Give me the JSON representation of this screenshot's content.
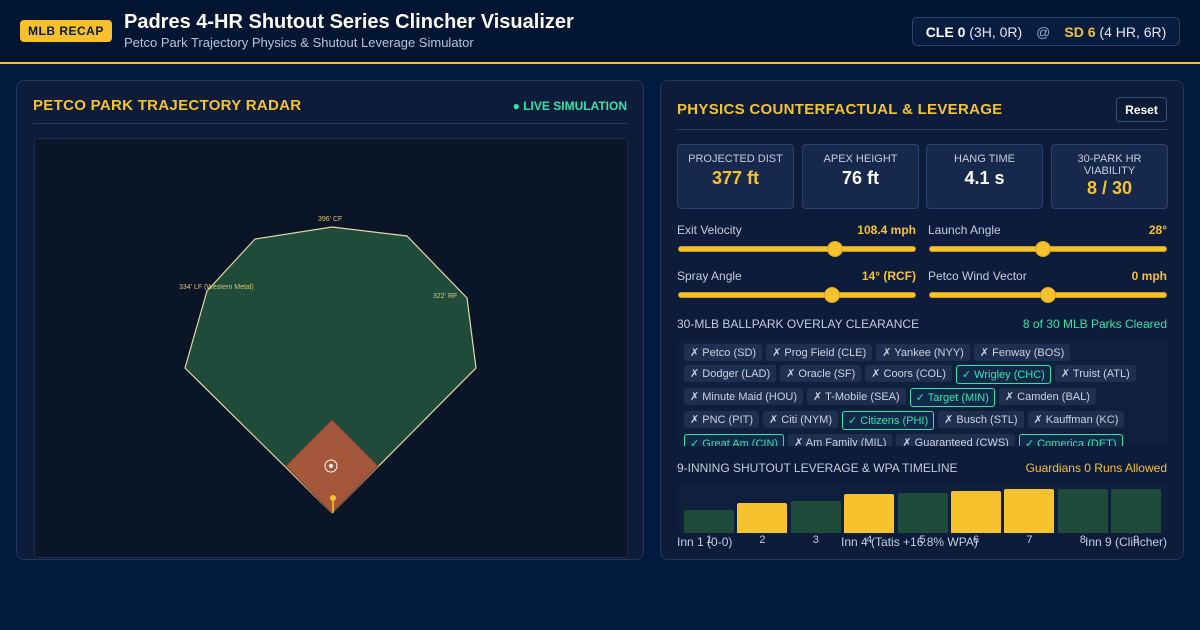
{
  "header": {
    "badge": "MLB RECAP",
    "title": "Padres 4-HR Shutout Series Clincher Visualizer",
    "subtitle": "Petco Park Trajectory Physics & Shutout Leverage Simulator",
    "score": {
      "away_team": "CLE 0",
      "away_detail": "(3H, 0R)",
      "separator": "@",
      "home_team": "SD 6",
      "home_detail": "(4 HR, 6R)"
    }
  },
  "radar": {
    "title": "PETCO PARK TRAJECTORY RADAR",
    "status": "● LIVE SIMULATION",
    "label_cf": "396' CF",
    "label_lf": "334' LF (Western Metal)",
    "label_rf": "322' RF",
    "colors": {
      "field": "#1f4b3a",
      "infield": "#a4573a",
      "warning": "#e9d6a4",
      "ball": "#f7c22e"
    }
  },
  "physics": {
    "title": "PHYSICS COUNTERFACTUAL & LEVERAGE",
    "reset_label": "Reset",
    "stats": [
      {
        "label": "PROJECTED DIST",
        "value": "377 ft"
      },
      {
        "label": "APEX HEIGHT",
        "value": "76 ft"
      },
      {
        "label": "HANG TIME",
        "value": "4.1 s"
      },
      {
        "label": "30-PARK HR VIABILITY",
        "value": "8 / 30"
      }
    ],
    "sliders": [
      {
        "label": "Exit Velocity",
        "value": "108.4 mph",
        "fraction": 0.66
      },
      {
        "label": "Launch Angle",
        "value": "28°",
        "fraction": 0.48
      },
      {
        "label": "Spray Angle",
        "value": "14° (RCF)",
        "fraction": 0.65
      },
      {
        "label": "Petco Wind Vector",
        "value": "0 mph",
        "fraction": 0.5
      }
    ]
  },
  "overlay": {
    "title": "30-MLB BALLPARK OVERLAY CLEARANCE",
    "summary": "8 of 30 MLB Parks Cleared",
    "parks": [
      {
        "label": "✗ Petco (SD)",
        "cleared": false
      },
      {
        "label": "✗ Prog Field (CLE)",
        "cleared": false
      },
      {
        "label": "✗ Yankee (NYY)",
        "cleared": false
      },
      {
        "label": "✗ Fenway (BOS)",
        "cleared": false
      },
      {
        "label": "✗ Dodger (LAD)",
        "cleared": false
      },
      {
        "label": "✗ Oracle (SF)",
        "cleared": false
      },
      {
        "label": "✗ Coors (COL)",
        "cleared": false
      },
      {
        "label": "✓ Wrigley (CHC)",
        "cleared": true
      },
      {
        "label": "✗ Truist (ATL)",
        "cleared": false
      },
      {
        "label": "✗ Minute Maid (HOU)",
        "cleared": false
      },
      {
        "label": "✗ T-Mobile (SEA)",
        "cleared": false
      },
      {
        "label": "✓ Target (MIN)",
        "cleared": true
      },
      {
        "label": "✗ Camden (BAL)",
        "cleared": false
      },
      {
        "label": "✗ PNC (PIT)",
        "cleared": false
      },
      {
        "label": "✗ Citi (NYM)",
        "cleared": false
      },
      {
        "label": "✓ Citizens (PHI)",
        "cleared": true
      },
      {
        "label": "✗ Busch (STL)",
        "cleared": false
      },
      {
        "label": "✗ Kauffman (KC)",
        "cleared": false
      },
      {
        "label": "✓ Great Am (CIN)",
        "cleared": true
      },
      {
        "label": "✗ Am Family (MIL)",
        "cleared": false
      },
      {
        "label": "✗ Guaranteed (CWS)",
        "cleared": false
      },
      {
        "label": "✓ Comerica (DET)",
        "cleared": true
      }
    ]
  },
  "timeline": {
    "title": "9-INNING SHUTOUT LEVERAGE & WPA TIMELINE",
    "summary": "Guardians 0 Runs Allowed",
    "innings": [
      {
        "label": "1",
        "level": 0.46,
        "highlight": false
      },
      {
        "label": "2",
        "level": 0.6,
        "highlight": true
      },
      {
        "label": "3",
        "level": 0.64,
        "highlight": false
      },
      {
        "label": "4",
        "level": 0.78,
        "highlight": true
      },
      {
        "label": "5",
        "level": 0.8,
        "highlight": false
      },
      {
        "label": "6",
        "level": 0.84,
        "highlight": true
      },
      {
        "label": "7",
        "level": 0.88,
        "highlight": true
      },
      {
        "label": "8",
        "level": 0.88,
        "highlight": false
      },
      {
        "label": "9",
        "level": 0.88,
        "highlight": false
      }
    ],
    "note_left": "Inn 1 (0-0)",
    "note_mid": "Inn 4 (Tatis +16.8% WPA)",
    "note_right": "Inn 9 (Clincher)",
    "colors": {
      "active": "#f7c22e",
      "idle": "#1f4b3a"
    }
  }
}
